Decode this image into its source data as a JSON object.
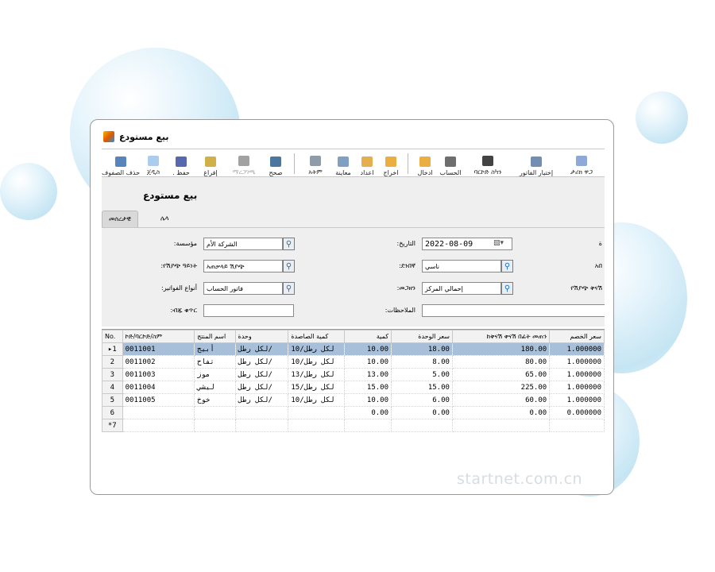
{
  "window": {
    "title": "بيع مستودع"
  },
  "toolbar": [
    {
      "label": "حذف الصفوف",
      "icon": "delete-rows-icon",
      "color": "#3a6fb0"
    },
    {
      "label": "ጀዲስ",
      "icon": "new-document-icon",
      "color": "#9ec3ea"
    },
    {
      "label": ". حفظ",
      "icon": "save-icon",
      "color": "#3a4ea0"
    },
    {
      "label": "إفراغ",
      "icon": "clear-brush-icon",
      "color": "#c9a227"
    },
    {
      "label": "ማረጋገጫ",
      "icon": "stamp-icon",
      "color": "#444444",
      "disabled": true
    },
    {
      "label": "صحح",
      "icon": "edit-icon",
      "color": "#2a5f8f"
    },
    {
      "label": "አትም",
      "icon": "print-icon",
      "color": "#7a8a9a"
    },
    {
      "label": "معاينة",
      "icon": "preview-icon",
      "color": "#6a8fb8"
    },
    {
      "label": "اعداد",
      "icon": "setup-icon",
      "color": "#e0a030"
    },
    {
      "label": "اخراج",
      "icon": "export-icon",
      "color": "#e8a020"
    },
    {
      "label": "ادخال",
      "icon": "import-icon",
      "color": "#e8a020"
    },
    {
      "label": "الحساب",
      "icon": "calculator-icon",
      "color": "#555555"
    },
    {
      "label": "ባርኮድ ስካን",
      "icon": "barcode-icon",
      "color": "#222222"
    },
    {
      "label": "إختيار الفاتور",
      "icon": "select-invoice-icon",
      "color": "#5a7aa8"
    },
    {
      "label": "ታሪክ ዋጋ",
      "icon": "price-history-icon",
      "color": "#7a9ad0"
    }
  ],
  "form": {
    "heading": "بيع مستودع",
    "tabs": [
      "መሰረታዊ",
      "ሌላ"
    ],
    "left": [
      {
        "label": ":مؤسسة",
        "value": "الشركة الأم",
        "lookup": true
      },
      {
        "label": ":የሽያጭ ዓይነት",
        "value": "አጠቃላይ ሽያጭ",
        "lookup": true
      },
      {
        "label": ":أنواع الفواتير",
        "value": "فاتور الحساب",
        "lookup": true
      },
      {
        "label": ":ብጁ ቁጥር",
        "value": "",
        "lookup": false
      }
    ],
    "right": [
      {
        "label": ":التاريخ",
        "value": "2022-08-09",
        "date": true
      },
      {
        "label": ":ደንበኛ",
        "value": "ناسي",
        "lookup": true
      },
      {
        "label": ":መጋዘን",
        "value": "إحمالي المركز",
        "lookup": true
      },
      {
        "label": ":الملاحظات",
        "value": ""
      }
    ],
    "far_right": [
      "ة",
      "አበ",
      "የሽያጭ ቅናሽ"
    ]
  },
  "grid": {
    "columns": [
      "No.",
      "ኮድ/ባርኮድ/ስም",
      "اسم المنتج",
      "وحدة",
      "كمية الصاصدة",
      "كمية",
      "سعر الوحدة",
      "ከቅናሽ ቀናሽ በፊት መጠን",
      "سعر الخصم"
    ],
    "rows": [
      {
        "no": "1",
        "code": "0011001",
        "name": "أبيج",
        "unit": "لكل رطل/",
        "pack": "لكل رطل/10",
        "qty": "10.00",
        "price": "18.00",
        "amount": "180.00",
        "disc": "1.000000",
        "selected": true
      },
      {
        "no": "2",
        "code": "0011002",
        "name": "تفاح",
        "unit": "لكل رطل/",
        "pack": "لكل رطل/10",
        "qty": "10.00",
        "price": "8.00",
        "amount": "80.00",
        "disc": "1.000000"
      },
      {
        "no": "3",
        "code": "0011003",
        "name": "موز",
        "unit": "لكل رطل/",
        "pack": "لكل رطل/13",
        "qty": "13.00",
        "price": "5.00",
        "amount": "65.00",
        "disc": "1.000000"
      },
      {
        "no": "4",
        "code": "0011004",
        "name": "ليشي",
        "unit": "لكل رطل/",
        "pack": "لكل رطل/15",
        "qty": "15.00",
        "price": "15.00",
        "amount": "225.00",
        "disc": "1.000000"
      },
      {
        "no": "5",
        "code": "0011005",
        "name": "خوخ",
        "unit": "لكل رطل/",
        "pack": "لكل رطل/10",
        "qty": "10.00",
        "price": "6.00",
        "amount": "60.00",
        "disc": "1.000000"
      },
      {
        "no": "6",
        "code": "",
        "name": "",
        "unit": "",
        "pack": "",
        "qty": "0.00",
        "price": "0.00",
        "amount": "0.00",
        "disc": "0.000000"
      },
      {
        "no": "*7",
        "code": "",
        "name": "",
        "unit": "",
        "pack": "",
        "qty": "",
        "price": "",
        "amount": "",
        "disc": ""
      }
    ]
  },
  "watermark": "startnet.com.cn"
}
